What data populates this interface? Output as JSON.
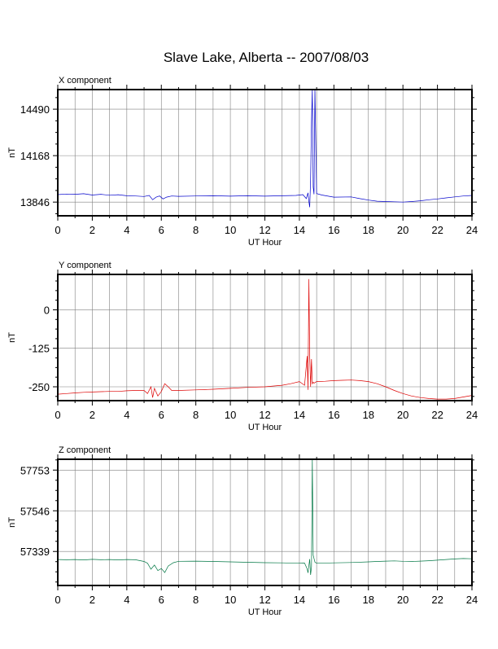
{
  "title": "Slave Lake, Alberta -- 2007/08/03",
  "chart_data": [
    {
      "type": "line",
      "panel_label": "X component",
      "xlabel": "UT Hour",
      "ylabel": "nT",
      "xlim": [
        0,
        24
      ],
      "ylim": [
        13751,
        14626
      ],
      "x_ticks": [
        0,
        2,
        4,
        6,
        8,
        10,
        12,
        14,
        16,
        18,
        20,
        22,
        24
      ],
      "y_ticks": [
        13846,
        14168,
        14490
      ],
      "grid": true,
      "color": "#0000cc",
      "series": [
        {
          "x": [
            0,
            0.5,
            1,
            1.5,
            2,
            2.5,
            3,
            3.5,
            4,
            4.5,
            5,
            5.3,
            5.5,
            5.7,
            5.9,
            6.1,
            6.3,
            6.6,
            7,
            8,
            9,
            10,
            11,
            12,
            13,
            13.8,
            14.2,
            14.4,
            14.5,
            14.55,
            14.6,
            14.65,
            14.7,
            14.75,
            14.8,
            14.85,
            14.9,
            15,
            15.3,
            16,
            17,
            17.5,
            18,
            18.5,
            19,
            19.5,
            20,
            20.5,
            21,
            21.5,
            22,
            22.5,
            23,
            23.5,
            24
          ],
          "y": [
            13898,
            13902,
            13900,
            13904,
            13895,
            13900,
            13893,
            13897,
            13890,
            13888,
            13885,
            13892,
            13862,
            13880,
            13888,
            13868,
            13880,
            13888,
            13886,
            13888,
            13890,
            13887,
            13890,
            13887,
            13890,
            13892,
            13898,
            13870,
            13910,
            13850,
            13810,
            14000,
            14400,
            14626,
            13950,
            13900,
            14626,
            13905,
            13895,
            13880,
            13882,
            13870,
            13860,
            13852,
            13850,
            13848,
            13846,
            13850,
            13855,
            13862,
            13868,
            13875,
            13882,
            13888,
            13892
          ]
        }
      ]
    },
    {
      "type": "line",
      "panel_label": "Y component",
      "xlabel": "UT Hour",
      "ylabel": "nT",
      "xlim": [
        0,
        24
      ],
      "ylim": [
        -295,
        115
      ],
      "x_ticks": [
        0,
        2,
        4,
        6,
        8,
        10,
        12,
        14,
        16,
        18,
        20,
        22,
        24
      ],
      "y_ticks": [
        -250,
        -125,
        0
      ],
      "grid": true,
      "color": "#dd0000",
      "series": [
        {
          "x": [
            0,
            0.5,
            1,
            1.5,
            2,
            2.5,
            3,
            3.5,
            4,
            4.5,
            5,
            5.2,
            5.4,
            5.5,
            5.6,
            5.8,
            6,
            6.2,
            6.4,
            6.6,
            7,
            8,
            9,
            10,
            11,
            12,
            13,
            13.5,
            14,
            14.3,
            14.45,
            14.5,
            14.55,
            14.6,
            14.65,
            14.7,
            14.75,
            14.8,
            14.85,
            15,
            15.5,
            16,
            16.5,
            17,
            17.5,
            18,
            18.5,
            19,
            19.5,
            20,
            20.5,
            21,
            21.5,
            22,
            22.5,
            23,
            23.5,
            24
          ],
          "y": [
            -274,
            -272,
            -270,
            -268,
            -267,
            -266,
            -265,
            -265,
            -263,
            -262,
            -262,
            -272,
            -250,
            -285,
            -255,
            -280,
            -265,
            -240,
            -250,
            -262,
            -262,
            -260,
            -258,
            -255,
            -252,
            -250,
            -245,
            -240,
            -233,
            -245,
            -150,
            -260,
            100,
            -150,
            -250,
            -160,
            -240,
            -235,
            -238,
            -233,
            -232,
            -230,
            -229,
            -228,
            -230,
            -233,
            -240,
            -250,
            -262,
            -272,
            -280,
            -285,
            -288,
            -290,
            -290,
            -288,
            -283,
            -278
          ]
        }
      ]
    },
    {
      "type": "line",
      "panel_label": "Z component",
      "xlabel": "UT Hour",
      "ylabel": "nT",
      "xlim": [
        0,
        24
      ],
      "ylim": [
        57166,
        57808
      ],
      "x_ticks": [
        0,
        2,
        4,
        6,
        8,
        10,
        12,
        14,
        16,
        18,
        20,
        22,
        24
      ],
      "y_ticks": [
        57339,
        57546,
        57753
      ],
      "grid": true,
      "color": "#007744",
      "series": [
        {
          "x": [
            0,
            0.5,
            1,
            1.5,
            2,
            2.5,
            3,
            3.5,
            4,
            4.5,
            5,
            5.2,
            5.4,
            5.6,
            5.8,
            6,
            6.2,
            6.4,
            6.7,
            7,
            8,
            9,
            10,
            11,
            12,
            13,
            14,
            14.3,
            14.45,
            14.5,
            14.6,
            14.65,
            14.7,
            14.75,
            14.8,
            14.9,
            15,
            16,
            17,
            18,
            18.5,
            19,
            19.5,
            20,
            20.5,
            21,
            21.5,
            22,
            22.5,
            23,
            23.5,
            24
          ],
          "y": [
            57298,
            57297,
            57298,
            57296,
            57299,
            57297,
            57298,
            57296,
            57298,
            57297,
            57288,
            57279,
            57249,
            57270,
            57242,
            57252,
            57232,
            57265,
            57282,
            57289,
            57290,
            57288,
            57286,
            57284,
            57282,
            57281,
            57279,
            57280,
            57250,
            57230,
            57300,
            57220,
            57260,
            57808,
            57320,
            57285,
            57279,
            57281,
            57283,
            57286,
            57288,
            57290,
            57291,
            57289,
            57288,
            57290,
            57292,
            57295,
            57298,
            57301,
            57303,
            57302
          ]
        }
      ]
    }
  ]
}
